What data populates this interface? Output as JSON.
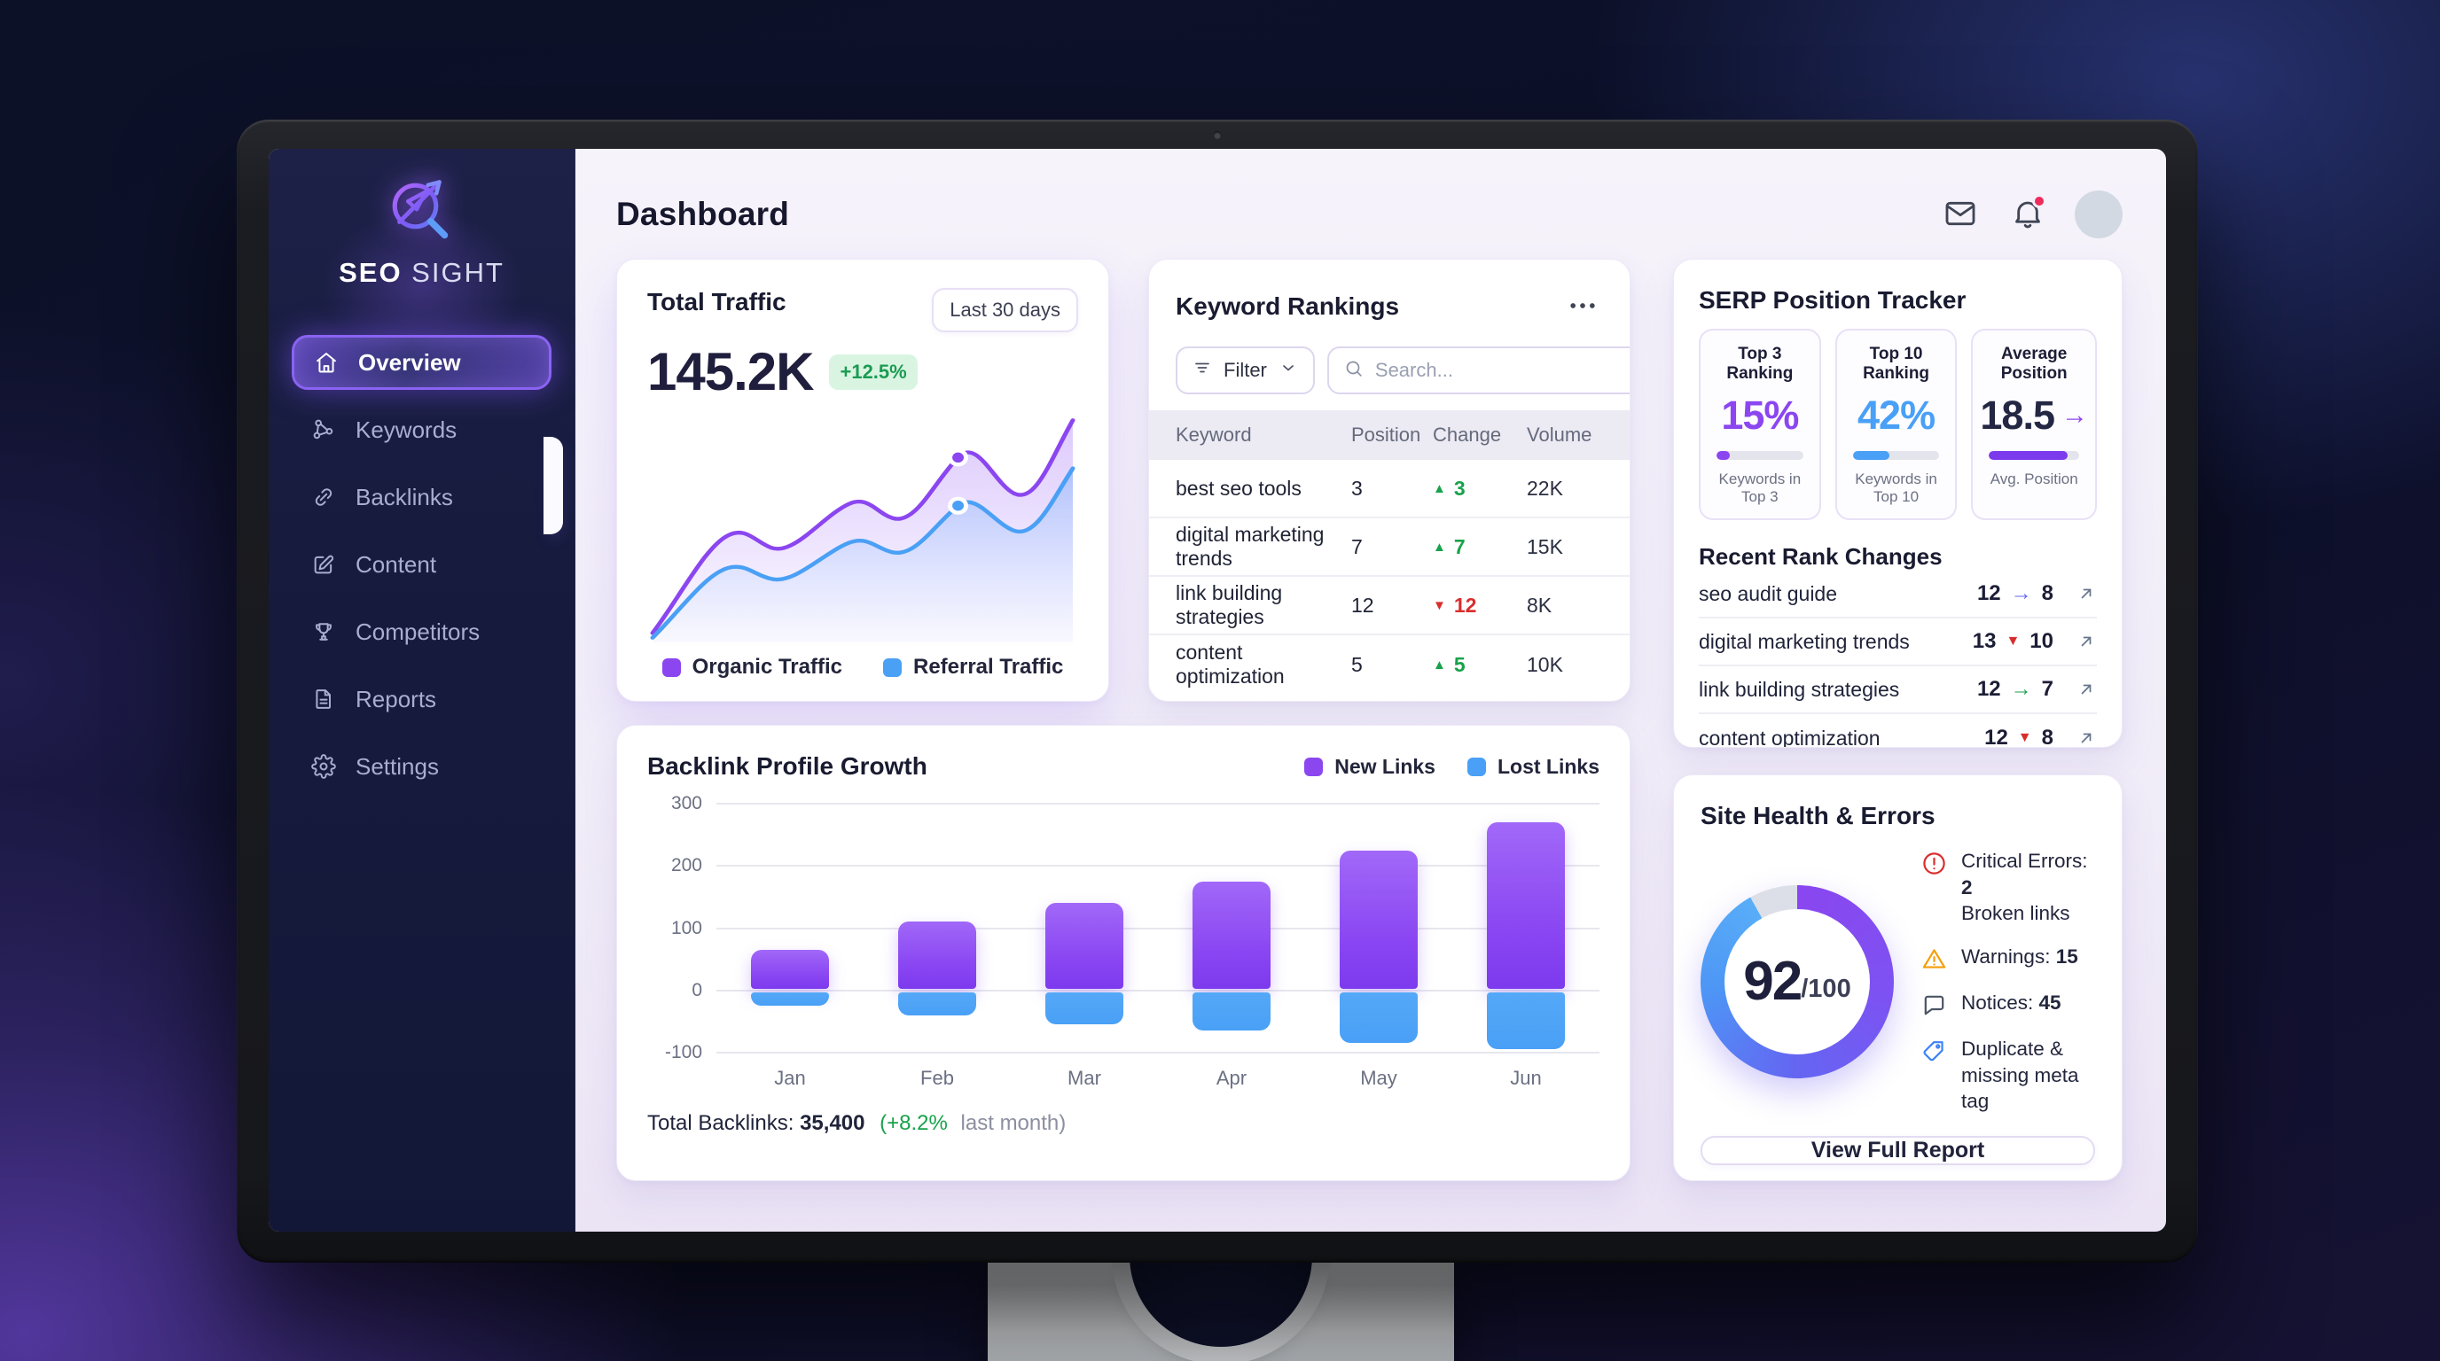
{
  "colors": {
    "accent_purple": "#8b5cf6",
    "accent_blue": "#4aa0f5",
    "positive_green": "#18a24b",
    "negative_red": "#d92d2d",
    "warning_orange": "#f59e0b",
    "notification_red": "#ee2b5b"
  },
  "sidebar": {
    "brand_bold": "SEO",
    "brand_light": " SIGHT",
    "items": [
      {
        "label": "Overview",
        "icon": "home",
        "active": true
      },
      {
        "label": "Keywords",
        "icon": "nodes",
        "active": false
      },
      {
        "label": "Backlinks",
        "icon": "link",
        "active": false
      },
      {
        "label": "Content",
        "icon": "edit",
        "active": false
      },
      {
        "label": "Competitors",
        "icon": "trophy",
        "active": false
      },
      {
        "label": "Reports",
        "icon": "file",
        "active": false
      },
      {
        "label": "Settings",
        "icon": "gear",
        "active": false
      }
    ]
  },
  "header": {
    "title": "Dashboard"
  },
  "traffic": {
    "title": "Total Traffic",
    "period": "Last 30 days",
    "value": "145.2K",
    "change": "+12.5%",
    "legend": [
      {
        "label": "Organic Traffic",
        "color": "#8b46f0"
      },
      {
        "label": "Referral Traffic",
        "color": "#4aa0f5"
      }
    ]
  },
  "keywords": {
    "title": "Keyword Rankings",
    "filter": "Filter",
    "search_placeholder": "Search...",
    "columns": [
      "Keyword",
      "Position",
      "Change",
      "Volume"
    ],
    "rows": [
      {
        "keyword": "best seo tools",
        "position": "3",
        "change": "3",
        "dir": "up",
        "volume": "22K"
      },
      {
        "keyword": "digital marketing trends",
        "position": "7",
        "change": "7",
        "dir": "up",
        "volume": "15K"
      },
      {
        "keyword": "link building strategies",
        "position": "12",
        "change": "12",
        "dir": "down",
        "volume": "8K"
      },
      {
        "keyword": "content optimization",
        "position": "5",
        "change": "5",
        "dir": "up",
        "volume": "10K"
      }
    ]
  },
  "serp": {
    "title": "SERP Position Tracker",
    "stats": [
      {
        "label": "Top 3 Ranking",
        "value": "15%",
        "value_color": "#8b46f0",
        "arrow": "",
        "arrow_color": "",
        "progress": 15,
        "bar_color": "#8b46f0",
        "sub": "Keywords in Top 3"
      },
      {
        "label": "Top 10 Ranking",
        "value": "42%",
        "value_color": "#49a0f6",
        "arrow": "",
        "arrow_color": "",
        "progress": 42,
        "bar_color": "#49a0f6",
        "sub": "Keywords in Top 10"
      },
      {
        "label": "Average Position",
        "value": "18.5",
        "value_color": "#242743",
        "arrow": "→",
        "arrow_color": "#8b46f0",
        "progress": 87,
        "bar_color": "#7c3aed",
        "sub": "Avg. Position"
      }
    ]
  },
  "rank_changes": {
    "title": "Recent Rank Changes",
    "rows": [
      {
        "keyword": "seo audit guide",
        "from": "12",
        "to": "8",
        "glyph": "→",
        "glyph_color": "#6366f1"
      },
      {
        "keyword": "digital marketing trends",
        "from": "13",
        "to": "10",
        "glyph": "▼",
        "glyph_color": "#d92d2d"
      },
      {
        "keyword": "link building strategies",
        "from": "12",
        "to": "7",
        "glyph": "→",
        "glyph_color": "#18a24b"
      },
      {
        "keyword": "content optimization",
        "from": "12",
        "to": "8",
        "glyph": "▼",
        "glyph_color": "#d92d2d"
      }
    ]
  },
  "backlinks": {
    "title": "Backlink Profile Growth",
    "legend": [
      {
        "label": "New Links",
        "color": "#8b46f0"
      },
      {
        "label": "Lost Links",
        "color": "#49a0f6"
      }
    ],
    "chart_data": {
      "type": "bar",
      "categories": [
        "Jan",
        "Feb",
        "Mar",
        "Apr",
        "May",
        "Jun"
      ],
      "series": [
        {
          "name": "New Links",
          "values": [
            65,
            110,
            140,
            175,
            225,
            270
          ]
        },
        {
          "name": "Lost Links",
          "values": [
            -25,
            -40,
            -55,
            -65,
            -85,
            -95
          ]
        }
      ],
      "yticks": [
        300,
        200,
        100,
        0,
        -100
      ],
      "ylim": [
        -100,
        300
      ],
      "grid": true,
      "legend_position": "top-right"
    },
    "footer_label": "Total Backlinks:",
    "footer_value": "35,400",
    "footer_change": "(+8.2%",
    "footer_suffix": "last month)"
  },
  "health": {
    "title": "Site Health & Errors",
    "score": "92",
    "score_suffix": "/100",
    "items": [
      {
        "icon": "alert",
        "color": "#d92d2d",
        "line1": "Critical Errors:",
        "bold": "2",
        "line2": "Broken links"
      },
      {
        "icon": "warn",
        "color": "#f59e0b",
        "line1": "Warnings:",
        "bold": "15",
        "line2": ""
      },
      {
        "icon": "chat",
        "color": "#4b5563",
        "line1": "Notices:",
        "bold": "45",
        "line2": ""
      },
      {
        "icon": "tag",
        "color": "#3b82f6",
        "line1": "Duplicate &",
        "bold": "",
        "line2": "missing meta tag"
      }
    ],
    "button": "View Full Report"
  }
}
